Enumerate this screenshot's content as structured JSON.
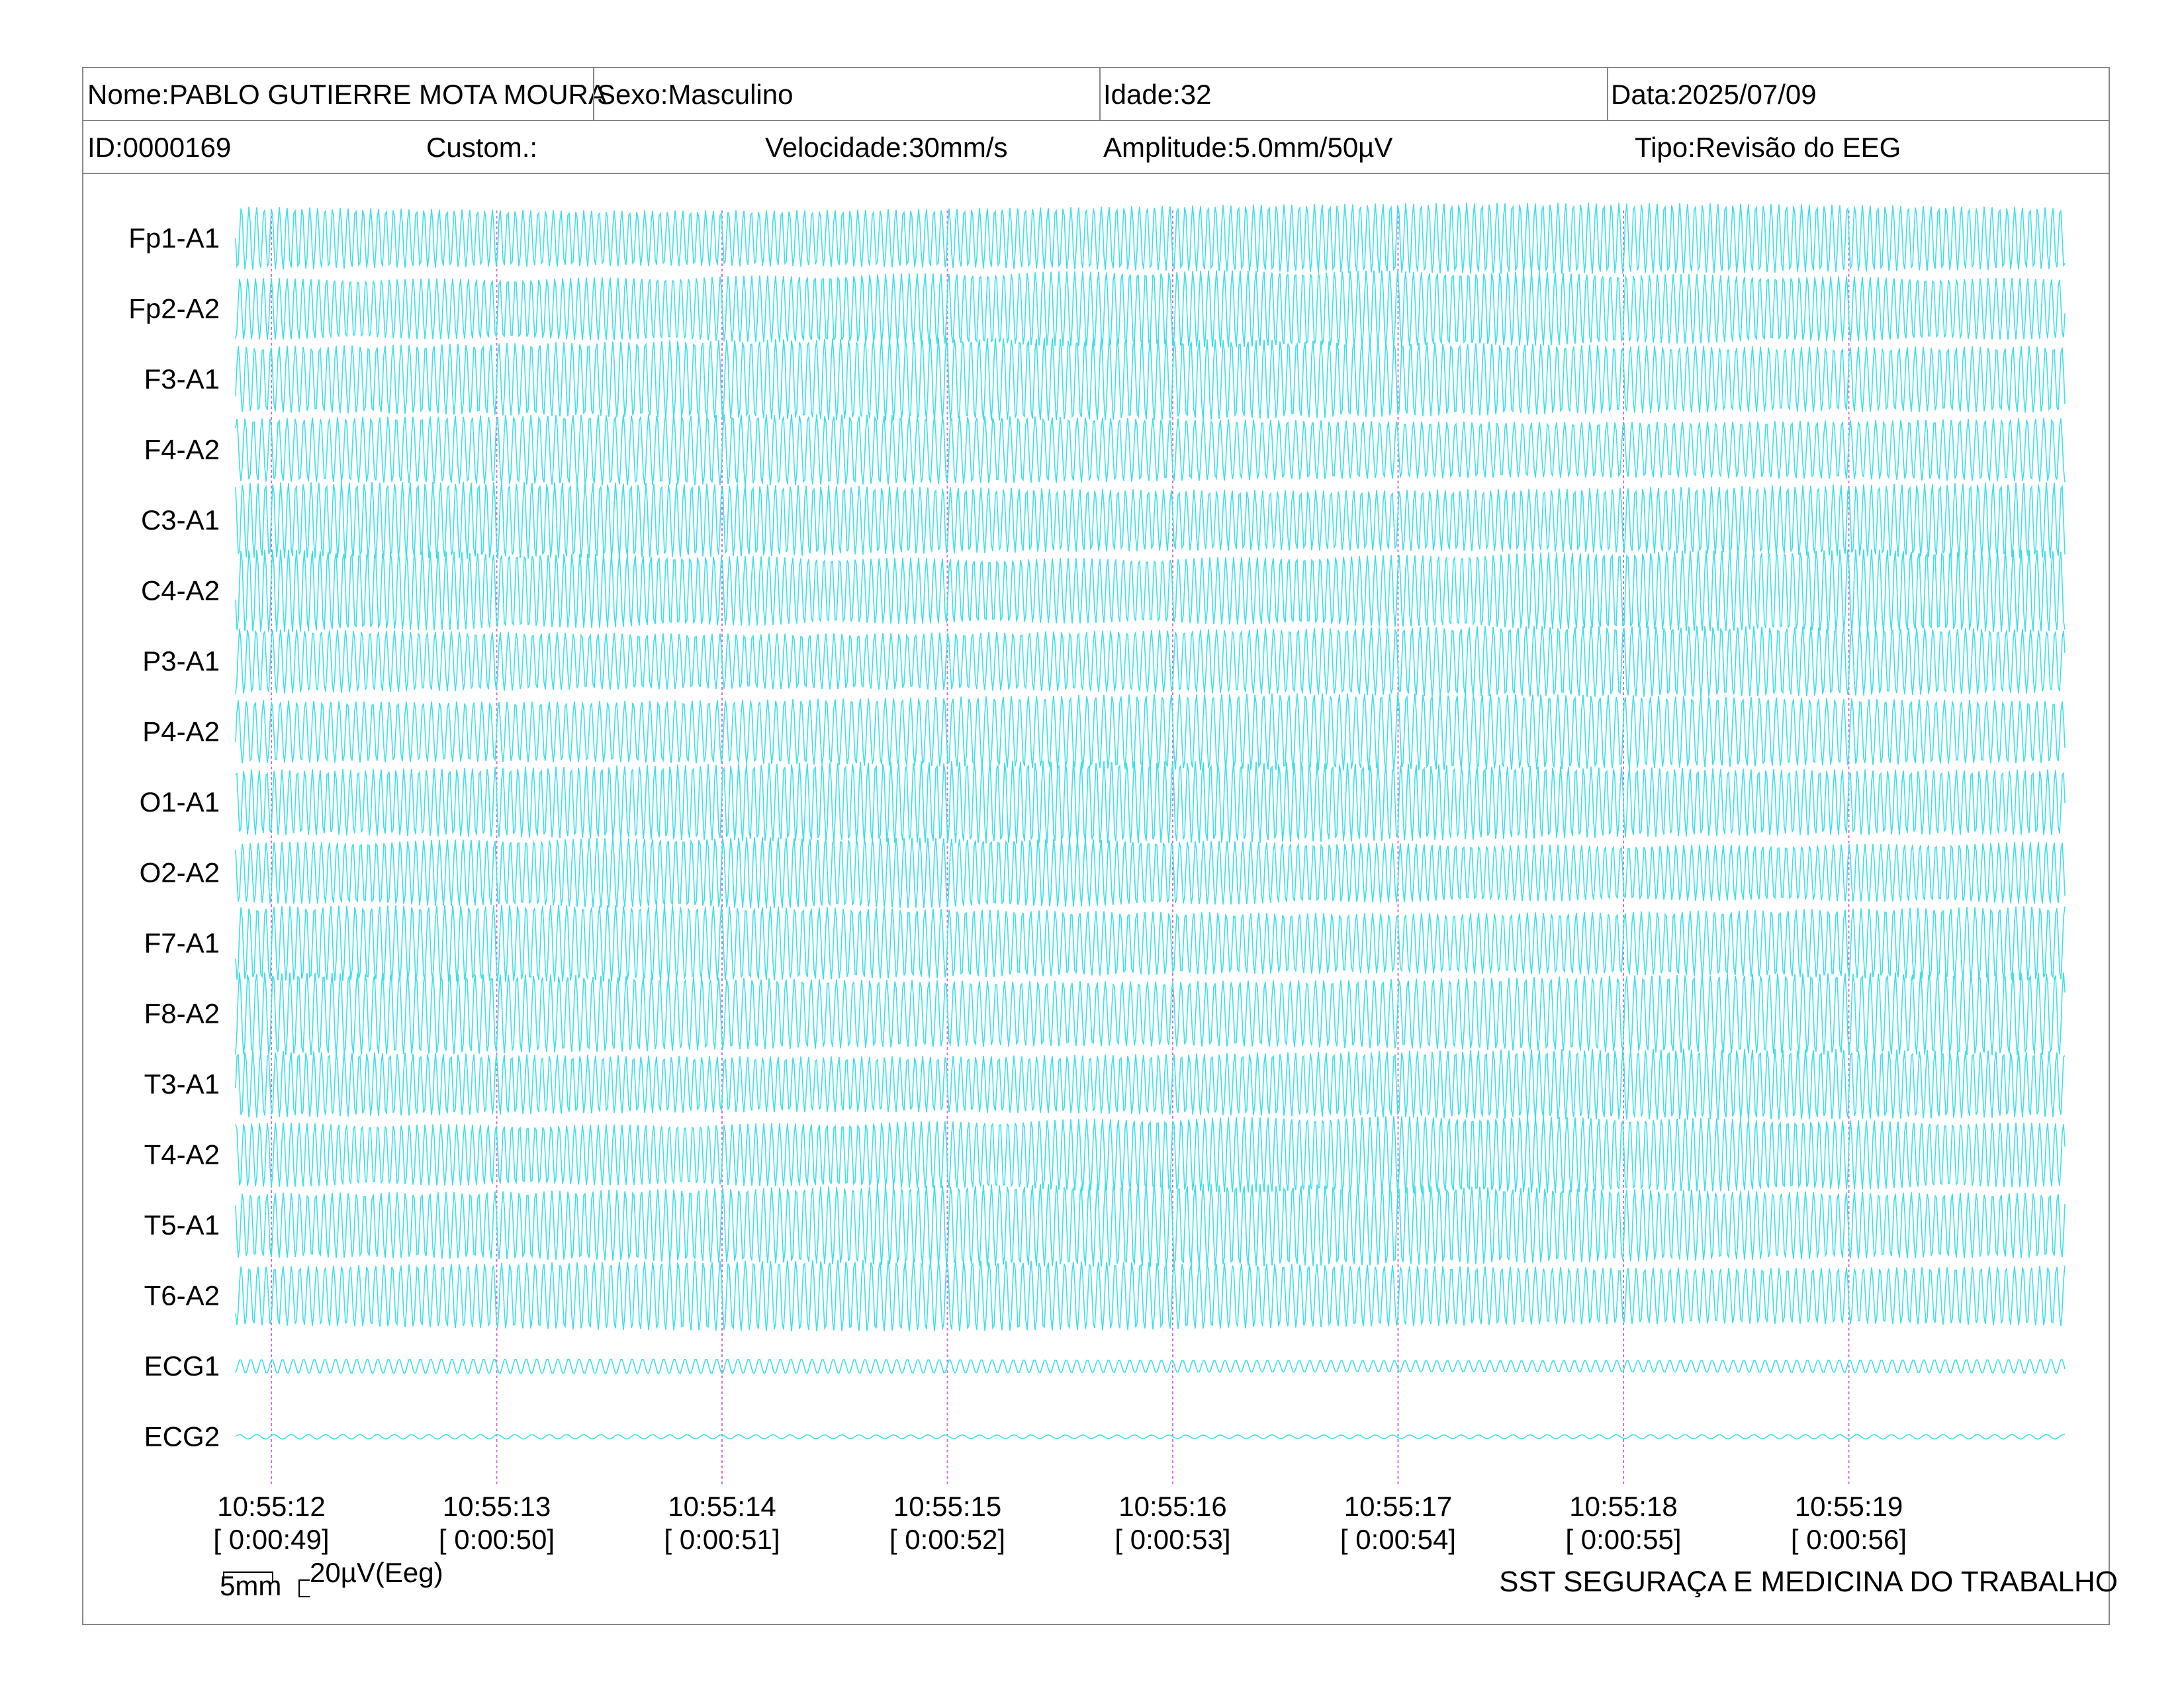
{
  "header": {
    "nome": "Nome:PABLO GUTIERRE MOTA MOURA",
    "sexo": "Sexo:Masculino",
    "idade": "Idade:32",
    "data": "Data:2025/07/09",
    "id": "ID:0000169",
    "custom": "Custom.:",
    "velocidade": "Velocidade:30mm/s",
    "amplitude": "Amplitude:5.0mm/50µV",
    "tipo": "Tipo:Revisão do EEG"
  },
  "channels": [
    "Fp1-A1",
    "Fp2-A2",
    "F3-A1",
    "F4-A2",
    "C3-A1",
    "C4-A2",
    "P3-A1",
    "P4-A2",
    "O1-A1",
    "O2-A2",
    "F7-A1",
    "F8-A2",
    "T3-A1",
    "T4-A2",
    "T5-A1",
    "T6-A2",
    "ECG1",
    "ECG2"
  ],
  "time_marks": [
    {
      "clock": "10:55:12",
      "elapsed": "[ 0:00:49]"
    },
    {
      "clock": "10:55:13",
      "elapsed": "[ 0:00:50]"
    },
    {
      "clock": "10:55:14",
      "elapsed": "[ 0:00:51]"
    },
    {
      "clock": "10:55:15",
      "elapsed": "[ 0:00:52]"
    },
    {
      "clock": "10:55:16",
      "elapsed": "[ 0:00:53]"
    },
    {
      "clock": "10:55:17",
      "elapsed": "[ 0:00:54]"
    },
    {
      "clock": "10:55:18",
      "elapsed": "[ 0:00:55]"
    },
    {
      "clock": "10:55:19",
      "elapsed": "[ 0:00:56]"
    }
  ],
  "scale": {
    "time": "5mm",
    "amplitude": "20µV(Eeg)"
  },
  "footer": {
    "clinic": "SST SEGURAÇA E MEDICINA DO TRABALHO"
  },
  "colors": {
    "trace": "#3fe0e6",
    "marker": "#d070e0",
    "border": "#888888"
  }
}
